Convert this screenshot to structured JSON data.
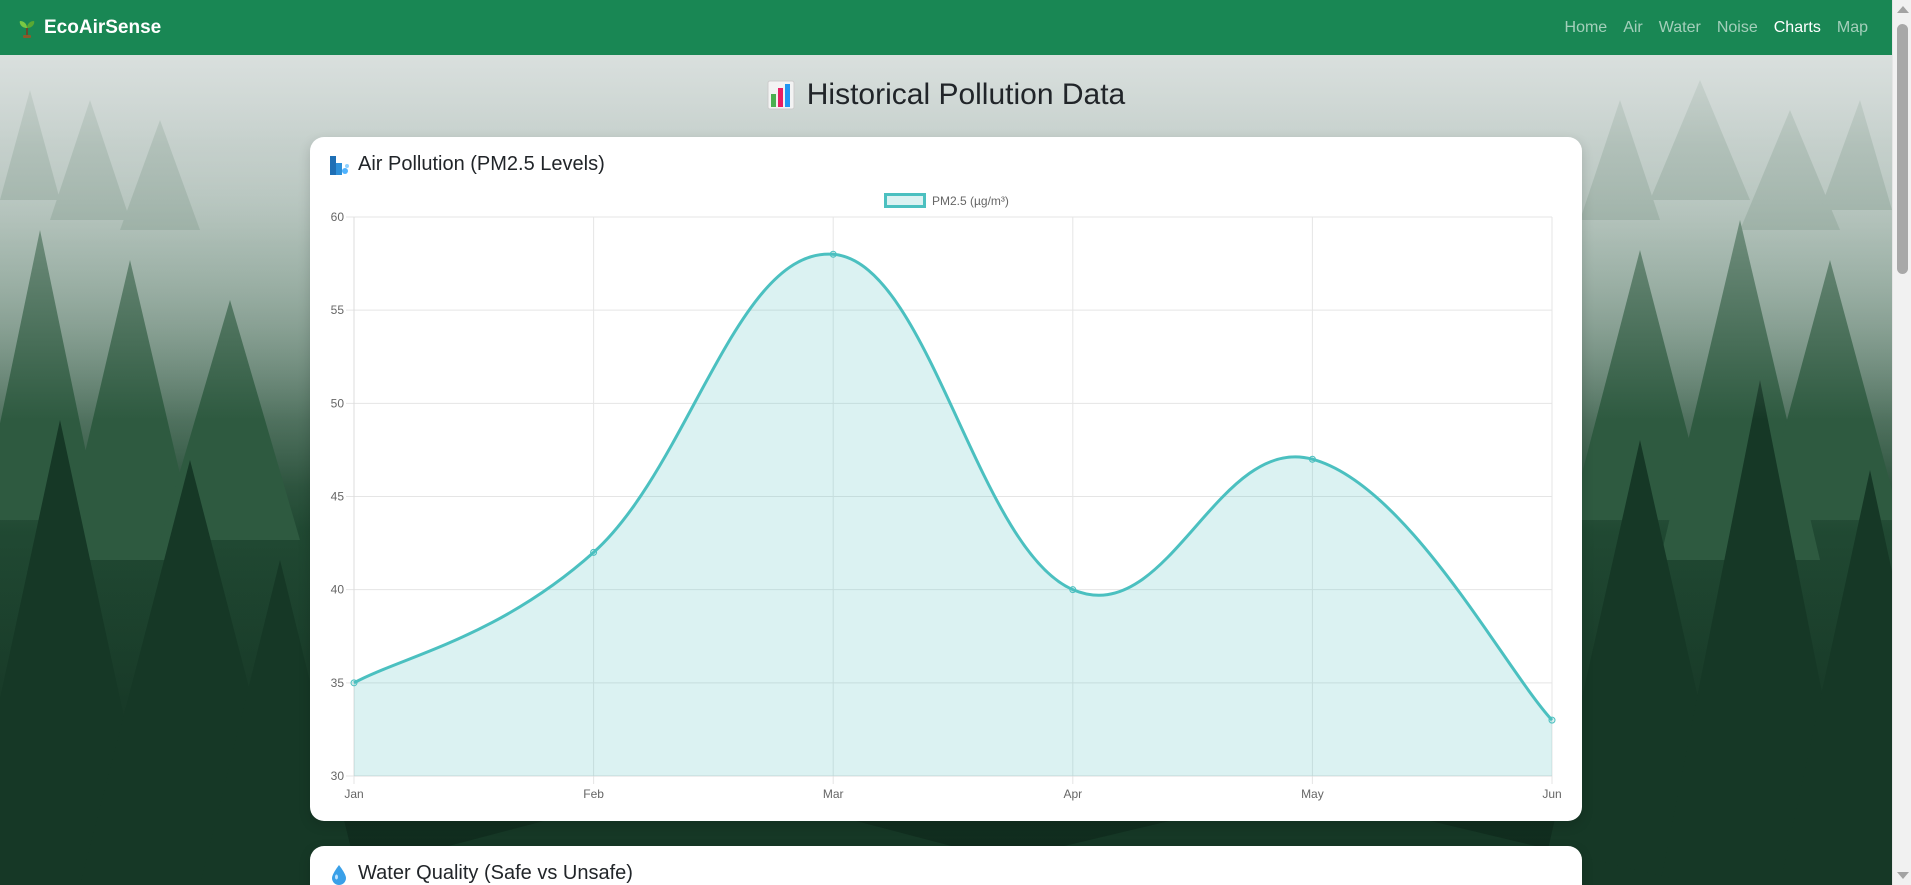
{
  "nav": {
    "brand": "EcoAirSense",
    "links": [
      {
        "label": "Home",
        "active": false
      },
      {
        "label": "Air",
        "active": false
      },
      {
        "label": "Water",
        "active": false
      },
      {
        "label": "Noise",
        "active": false
      },
      {
        "label": "Charts",
        "active": true
      },
      {
        "label": "Map",
        "active": false
      }
    ],
    "color": "#198754"
  },
  "page": {
    "title": "Historical Pollution Data",
    "title_icon": "bar-chart-icon"
  },
  "cards": {
    "air": {
      "title": "Air Pollution (PM2.5 Levels)",
      "icon": "factory-icon"
    },
    "water": {
      "title": "Water Quality (Safe vs Unsafe)",
      "icon": "water-drop-icon"
    }
  },
  "chart_data": {
    "type": "line",
    "categories": [
      "Jan",
      "Feb",
      "Mar",
      "Apr",
      "May",
      "Jun"
    ],
    "series": [
      {
        "name": "PM2.5 (µg/m³)",
        "values": [
          35,
          42,
          58,
          40,
          47,
          33
        ],
        "color": "#4bc0c0",
        "fill": "rgba(75,192,192,0.2)"
      }
    ],
    "ylim": [
      30,
      60
    ],
    "yticks": [
      30,
      35,
      40,
      45,
      50,
      55,
      60
    ],
    "grid": true,
    "legend": "top-center",
    "curve": "smooth",
    "filled": true
  }
}
